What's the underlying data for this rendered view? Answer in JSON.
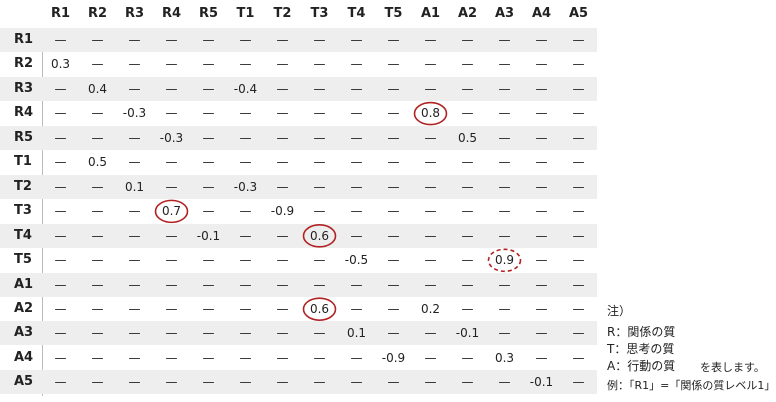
{
  "table": {
    "columns": [
      "R1",
      "R2",
      "R3",
      "R4",
      "R5",
      "T1",
      "T2",
      "T3",
      "T4",
      "T5",
      "A1",
      "A2",
      "A3",
      "A4",
      "A5"
    ],
    "rows": [
      {
        "label": "R1",
        "cells": [
          "—",
          "—",
          "—",
          "—",
          "—",
          "—",
          "—",
          "—",
          "—",
          "—",
          "—",
          "—",
          "—",
          "—",
          "—"
        ]
      },
      {
        "label": "R2",
        "cells": [
          "0.3",
          "—",
          "—",
          "—",
          "—",
          "—",
          "—",
          "—",
          "—",
          "—",
          "—",
          "—",
          "—",
          "—",
          "—"
        ]
      },
      {
        "label": "R3",
        "cells": [
          "—",
          "0.4",
          "—",
          "—",
          "—",
          "-0.4",
          "—",
          "—",
          "—",
          "—",
          "—",
          "—",
          "—",
          "—",
          "—"
        ]
      },
      {
        "label": "R4",
        "cells": [
          "—",
          "—",
          "-0.3",
          "—",
          "—",
          "—",
          "—",
          "—",
          "—",
          "—",
          "0.8",
          "—",
          "—",
          "—",
          "—"
        ]
      },
      {
        "label": "R5",
        "cells": [
          "—",
          "—",
          "—",
          "-0.3",
          "—",
          "—",
          "—",
          "—",
          "—",
          "—",
          "—",
          "0.5",
          "—",
          "—",
          "—"
        ]
      },
      {
        "label": "T1",
        "cells": [
          "—",
          "0.5",
          "—",
          "—",
          "—",
          "—",
          "—",
          "—",
          "—",
          "—",
          "—",
          "—",
          "—",
          "—",
          "—"
        ]
      },
      {
        "label": "T2",
        "cells": [
          "—",
          "—",
          "0.1",
          "—",
          "—",
          "-0.3",
          "—",
          "—",
          "—",
          "—",
          "—",
          "—",
          "—",
          "—",
          "—"
        ]
      },
      {
        "label": "T3",
        "cells": [
          "—",
          "—",
          "—",
          "0.7",
          "—",
          "—",
          "-0.9",
          "—",
          "—",
          "—",
          "—",
          "—",
          "—",
          "—",
          "—"
        ]
      },
      {
        "label": "T4",
        "cells": [
          "—",
          "—",
          "—",
          "—",
          "-0.1",
          "—",
          "—",
          "0.6",
          "—",
          "—",
          "—",
          "—",
          "—",
          "—",
          "—"
        ]
      },
      {
        "label": "T5",
        "cells": [
          "—",
          "—",
          "—",
          "—",
          "—",
          "—",
          "—",
          "—",
          "-0.5",
          "—",
          "—",
          "—",
          "0.9",
          "—",
          "—"
        ]
      },
      {
        "label": "A1",
        "cells": [
          "—",
          "—",
          "—",
          "—",
          "—",
          "—",
          "—",
          "—",
          "—",
          "—",
          "—",
          "—",
          "—",
          "—",
          "—"
        ]
      },
      {
        "label": "A2",
        "cells": [
          "—",
          "—",
          "—",
          "—",
          "—",
          "—",
          "—",
          "0.6",
          "—",
          "—",
          "0.2",
          "—",
          "—",
          "—",
          "—"
        ]
      },
      {
        "label": "A3",
        "cells": [
          "—",
          "—",
          "—",
          "—",
          "—",
          "—",
          "—",
          "—",
          "0.1",
          "—",
          "—",
          "-0.1",
          "—",
          "—",
          "—"
        ]
      },
      {
        "label": "A4",
        "cells": [
          "—",
          "—",
          "—",
          "—",
          "—",
          "—",
          "—",
          "—",
          "—",
          "-0.9",
          "—",
          "—",
          "0.3",
          "—",
          "—"
        ]
      },
      {
        "label": "A5",
        "cells": [
          "—",
          "—",
          "—",
          "—",
          "—",
          "—",
          "—",
          "—",
          "—",
          "—",
          "—",
          "—",
          "—",
          "-0.1",
          "—"
        ]
      }
    ],
    "circled": [
      {
        "row": 3,
        "col": 10,
        "style": "solid"
      },
      {
        "row": 7,
        "col": 3,
        "style": "solid"
      },
      {
        "row": 8,
        "col": 7,
        "style": "solid"
      },
      {
        "row": 9,
        "col": 12,
        "style": "dashed"
      },
      {
        "row": 11,
        "col": 7,
        "style": "solid"
      }
    ]
  },
  "notes": {
    "heading": "注）",
    "lines": [
      "R：関係の質",
      "T：思考の質",
      "A：行動の質"
    ],
    "suffix": "を表します。",
    "example": "例：「R1」=「関係の質レベル1」"
  }
}
